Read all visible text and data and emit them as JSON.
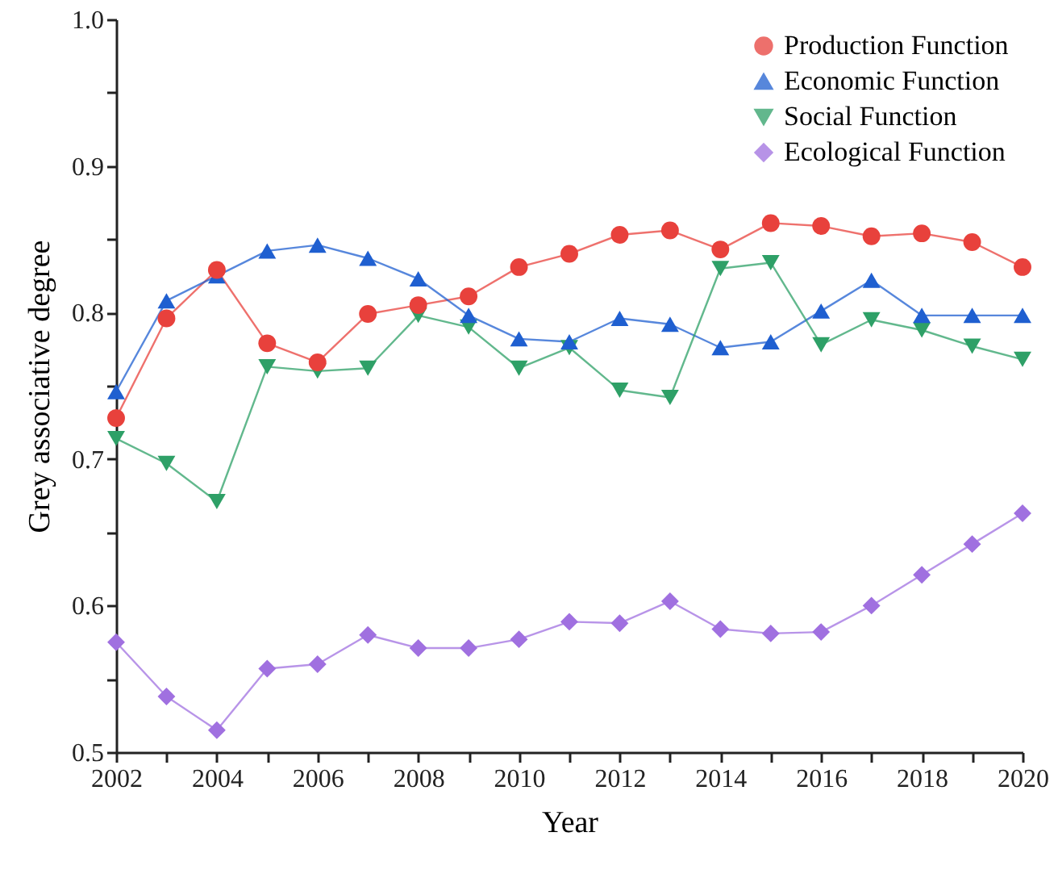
{
  "chart_data": {
    "type": "line",
    "xlabel": "Year",
    "ylabel": "Grey associative degree",
    "x": [
      2002,
      2003,
      2004,
      2005,
      2006,
      2007,
      2008,
      2009,
      2010,
      2011,
      2012,
      2013,
      2014,
      2015,
      2016,
      2017,
      2018,
      2019,
      2020
    ],
    "series": [
      {
        "name": "Production Function",
        "color": "#e8413c",
        "marker": "circle",
        "values": [
          0.728,
          0.796,
          0.829,
          0.779,
          0.766,
          0.799,
          0.805,
          0.811,
          0.831,
          0.84,
          0.853,
          0.856,
          0.843,
          0.861,
          0.859,
          0.852,
          0.854,
          0.848,
          0.831
        ]
      },
      {
        "name": "Economic Function",
        "color": "#1f5fd0",
        "marker": "triangle",
        "values": [
          0.746,
          0.808,
          0.825,
          0.842,
          0.846,
          0.837,
          0.823,
          0.798,
          0.782,
          0.78,
          0.796,
          0.792,
          0.776,
          0.78,
          0.801,
          0.822,
          0.798,
          0.798,
          0.798
        ]
      },
      {
        "name": "Social Function",
        "color": "#2ea067",
        "marker": "triangle-down",
        "values": [
          0.714,
          0.697,
          0.671,
          0.763,
          0.76,
          0.762,
          0.798,
          0.79,
          0.762,
          0.776,
          0.747,
          0.742,
          0.83,
          0.834,
          0.778,
          0.795,
          0.788,
          0.777,
          0.768
        ]
      },
      {
        "name": "Ecological Function",
        "color": "#a070e0",
        "marker": "diamond",
        "values": [
          0.575,
          0.538,
          0.515,
          0.557,
          0.56,
          0.58,
          0.571,
          0.571,
          0.577,
          0.589,
          0.588,
          0.603,
          0.584,
          0.581,
          0.582,
          0.6,
          0.621,
          0.642,
          0.663
        ]
      }
    ],
    "xlim": [
      2002,
      2020
    ],
    "xticks": [
      2002,
      {
        "value": 2003,
        "label": null
      },
      2004,
      {
        "value": 2005,
        "label": null
      },
      2006,
      {
        "value": 2007,
        "label": null
      },
      2008,
      {
        "value": 2009,
        "label": null
      },
      2010,
      {
        "value": 2011,
        "label": null
      },
      2012,
      {
        "value": 2013,
        "label": null
      },
      2014,
      {
        "value": 2015,
        "label": null
      },
      2016,
      {
        "value": 2017,
        "label": null
      },
      2018,
      {
        "value": 2019,
        "label": null
      },
      2020
    ],
    "ylim": [
      0.5,
      1.0
    ],
    "yticks": [
      {
        "value": 0.5,
        "label": "0.5"
      },
      {
        "value": 0.55,
        "label": null
      },
      {
        "value": 0.6,
        "label": "0.6"
      },
      {
        "value": 0.65,
        "label": null
      },
      {
        "value": 0.7,
        "label": "0.7"
      },
      {
        "value": 0.75,
        "label": null
      },
      {
        "value": 0.8,
        "label": "0.8"
      },
      {
        "value": 0.85,
        "label": null
      },
      {
        "value": 0.9,
        "label": "0.9"
      },
      {
        "value": 0.95,
        "label": null
      },
      {
        "value": 1.0,
        "label": "1.0"
      }
    ],
    "grid": false,
    "legend": "top right",
    "line_style": "solid"
  }
}
